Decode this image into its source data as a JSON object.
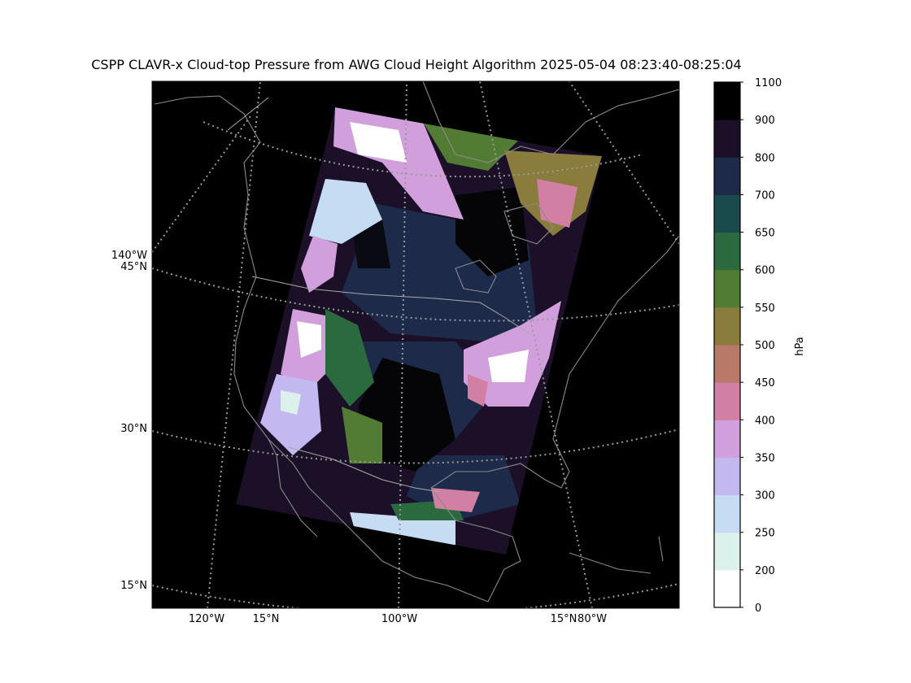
{
  "title": "CSPP CLAVR-x Cloud-top Pressure from AWG Cloud Height Algorithm 2025-05-04 08:23:40-08:25:04",
  "map": {
    "projection_style": "polar lambert grid with dotted graticule",
    "background_color": "#000000",
    "coastline_color": "#8a8a8a",
    "left_labels": [
      "140°W",
      "45°N",
      "30°N",
      "15°N"
    ],
    "bottom_labels": [
      "120°W",
      "15°N",
      "100°W",
      "15°N",
      "80°W"
    ]
  },
  "colorbar": {
    "label": "hPa",
    "ticks": [
      "0",
      "200",
      "250",
      "300",
      "350",
      "400",
      "450",
      "500",
      "550",
      "600",
      "650",
      "700",
      "800",
      "900",
      "1100"
    ],
    "colors": [
      "#ffffff",
      "#dcf1ec",
      "#c6dcf3",
      "#c4b8f0",
      "#d19fdc",
      "#d27fa4",
      "#b97968",
      "#8a7c3c",
      "#527c34",
      "#2a6a3e",
      "#1b4a4c",
      "#1d2a4a",
      "#1c1028",
      "#000000"
    ]
  },
  "chart_data": {
    "type": "heatmap",
    "title": "CSPP CLAVR-x Cloud-top Pressure from AWG Cloud Height Algorithm 2025-05-04 08:23:40-08:25:04",
    "colorbar_label": "hPa",
    "colorbar_levels": [
      0,
      200,
      250,
      300,
      350,
      400,
      450,
      500,
      550,
      600,
      650,
      700,
      800,
      900,
      1100
    ],
    "lon_labels": [
      "120°W",
      "100°W",
      "80°W",
      "140°W"
    ],
    "lat_labels": [
      "15°N",
      "30°N",
      "45°N"
    ],
    "grid": true
  }
}
